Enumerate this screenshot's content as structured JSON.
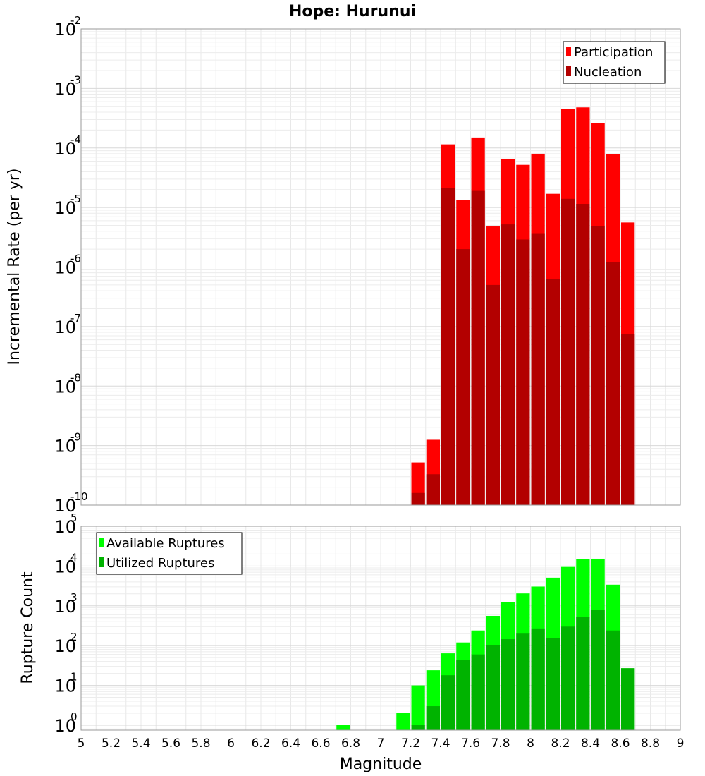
{
  "chart_data": [
    {
      "type": "bar",
      "title": "Hope: Hurunui",
      "xlabel": "",
      "ylabel": "Incremental Rate (per yr)",
      "yscale": "log",
      "ylim": [
        1e-10,
        0.01
      ],
      "xlim": [
        5,
        9
      ],
      "bar_width": 0.1,
      "grid": true,
      "legend_position": "top-right",
      "x": [
        7.25,
        7.35,
        7.45,
        7.55,
        7.65,
        7.75,
        7.85,
        7.95,
        8.05,
        8.15,
        8.25,
        8.35,
        8.45,
        8.55,
        8.65
      ],
      "series": [
        {
          "name": "Participation",
          "color": "#ff0000",
          "values": [
            5.2e-10,
            1.25e-09,
            0.000115,
            1.35e-05,
            0.00015,
            4.8e-06,
            6.6e-05,
            5.2e-05,
            8e-05,
            1.7e-05,
            0.00045,
            0.00048,
            0.00026,
            7.8e-05,
            5.6e-06
          ]
        },
        {
          "name": "Nucleation",
          "color": "#b30000",
          "values": [
            1.6e-10,
            3.3e-10,
            2.1e-05,
            2e-06,
            1.9e-05,
            5e-07,
            5.2e-06,
            2.9e-06,
            3.7e-06,
            6.2e-07,
            1.4e-05,
            1.15e-05,
            4.9e-06,
            1.2e-06,
            7.5e-08
          ]
        }
      ]
    },
    {
      "type": "bar",
      "title": "",
      "xlabel": "Magnitude",
      "ylabel": "Rupture Count",
      "yscale": "log",
      "ylim": [
        0.75,
        100000
      ],
      "xlim": [
        5,
        9
      ],
      "bar_width": 0.1,
      "grid": true,
      "legend_position": "top-left",
      "x": [
        6.75,
        7.15,
        7.25,
        7.35,
        7.45,
        7.55,
        7.65,
        7.75,
        7.85,
        7.95,
        8.05,
        8.15,
        8.25,
        8.35,
        8.45,
        8.55,
        8.65
      ],
      "xticks": [
        "5",
        "5.2",
        "5.4",
        "5.6",
        "5.8",
        "6",
        "6.2",
        "6.4",
        "6.6",
        "6.8",
        "7",
        "7.2",
        "7.4",
        "7.6",
        "7.8",
        "8",
        "8.2",
        "8.4",
        "8.6",
        "8.8",
        "9"
      ],
      "series": [
        {
          "name": "Available Ruptures",
          "color": "#00ff00",
          "values": [
            1,
            2,
            10,
            24,
            64,
            120,
            240,
            560,
            1250,
            2050,
            3050,
            5100,
            9500,
            15000,
            15300,
            3400,
            27
          ]
        },
        {
          "name": "Utilized Ruptures",
          "color": "#00b300",
          "values": [
            0,
            0,
            1,
            3,
            18,
            44,
            60,
            105,
            145,
            200,
            270,
            155,
            300,
            520,
            800,
            240,
            27
          ]
        }
      ]
    }
  ]
}
